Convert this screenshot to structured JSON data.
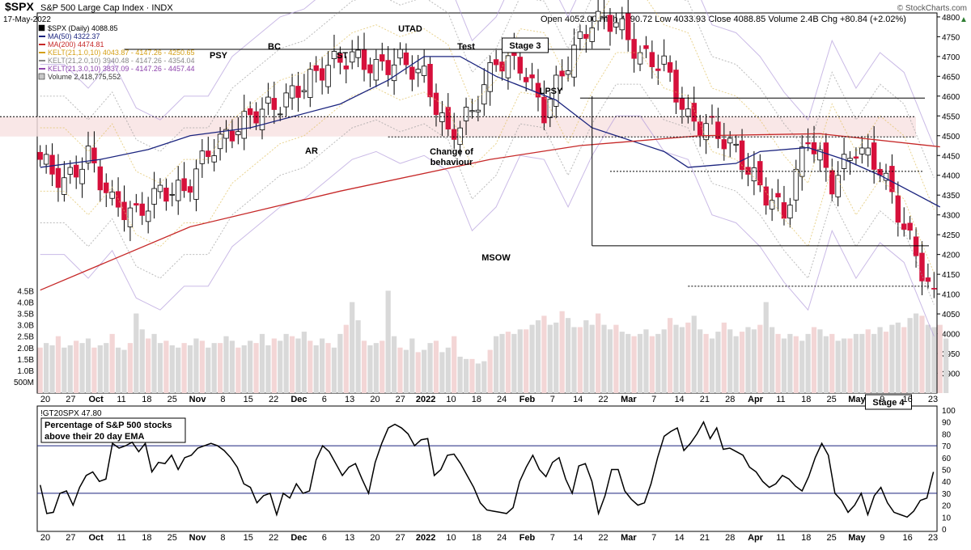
{
  "chart_data": {
    "type": "candlestick",
    "header": {
      "symbol": "$SPX",
      "name": "S&P 500 Large Cap Index",
      "exchange": "INDX",
      "date": "17-May-2022",
      "brand": "© StockCharts.com",
      "ohlc": "Open 4052.00  High 4090.72  Low 4033.93  Close 4088.85  Volume 2.4B  Chg +80.84 (+2.02%)",
      "up_arrow": "▲"
    },
    "legend": [
      {
        "label": "$SPX (Daily) 4088.85",
        "color": "#000000",
        "kind": "candle"
      },
      {
        "label": "MA(50) 4322.37",
        "color": "#1a237e",
        "kind": "line"
      },
      {
        "label": "MA(200) 4474.81",
        "color": "#c62828",
        "kind": "line"
      },
      {
        "label": "KELT(21,1.0,10) 4043.87 - 4147.26 - 4250.65",
        "color": "#d4a017",
        "kind": "line"
      },
      {
        "label": "KELT(21,2.0,10) 3940.48 - 4147.26 - 4354.04",
        "color": "#888888",
        "kind": "line"
      },
      {
        "label": "KELT(21,3.0,10) 3837.09 - 4147.26 - 4457.44",
        "color": "#8e44ad",
        "kind": "line"
      },
      {
        "label": "Volume 2,418,775,552",
        "color": "#c8c8c8",
        "kind": "box"
      }
    ],
    "price_axis": {
      "min": 3850,
      "max": 4810,
      "ticks": [
        3900,
        3950,
        4000,
        4050,
        4100,
        4150,
        4200,
        4250,
        4300,
        4350,
        4400,
        4450,
        4500,
        4550,
        4600,
        4650,
        4700,
        4750,
        4800
      ]
    },
    "volume_axis": {
      "ticks": [
        "4.5B",
        "4.0B",
        "3.5B",
        "3.0B",
        "2.5B",
        "2.0B",
        "1.5B",
        "1.0B",
        "500M"
      ]
    },
    "x_labels": [
      "20",
      "27",
      "Oct",
      "11",
      "18",
      "25",
      "Nov",
      "8",
      "15",
      "22",
      "Dec",
      "6",
      "13",
      "20",
      "27",
      "2022",
      "10",
      "18",
      "24",
      "Feb",
      "7",
      "14",
      "22",
      "Mar",
      "7",
      "14",
      "21",
      "28",
      "Apr",
      "11",
      "18",
      "25",
      "May",
      "9",
      "16",
      "23"
    ],
    "annotations": [
      "PSY",
      "BC",
      "ST",
      "UTAD",
      "Test",
      "Stage 3",
      "AR",
      "LPSY",
      "Change of behaviour",
      "MSOW",
      "Stage 4"
    ],
    "ma50_points": [
      [
        0,
        4420
      ],
      [
        10,
        4440
      ],
      [
        18,
        4465
      ],
      [
        25,
        4500
      ],
      [
        35,
        4520
      ],
      [
        50,
        4580
      ],
      [
        58,
        4640
      ],
      [
        64,
        4700
      ],
      [
        70,
        4700
      ],
      [
        76,
        4650
      ],
      [
        86,
        4590
      ],
      [
        92,
        4520
      ],
      [
        100,
        4480
      ],
      [
        104,
        4460
      ],
      [
        108,
        4420
      ],
      [
        116,
        4430
      ],
      [
        120,
        4460
      ],
      [
        128,
        4470
      ],
      [
        134,
        4440
      ],
      [
        140,
        4400
      ],
      [
        150,
        4320
      ]
    ],
    "ma200_points": [
      [
        0,
        4110
      ],
      [
        25,
        4270
      ],
      [
        50,
        4360
      ],
      [
        75,
        4440
      ],
      [
        90,
        4475
      ],
      [
        110,
        4500
      ],
      [
        130,
        4505
      ],
      [
        150,
        4472
      ]
    ],
    "volume_bars_B": [
      2.0,
      2.2,
      2.1,
      2.5,
      2.0,
      2.1,
      2.3,
      2.2,
      2.4,
      2.0,
      2.1,
      2.2,
      2.6,
      2.0,
      1.9,
      2.2,
      3.5,
      2.8,
      2.4,
      2.6,
      2.2,
      2.3,
      2.1,
      2.0,
      2.2,
      2.1,
      2.4,
      2.3,
      2.0,
      2.2,
      2.2,
      2.5,
      2.3,
      2.0,
      2.1,
      2.3,
      2.2,
      2.6,
      2.1,
      2.4,
      2.3,
      2.6,
      2.5,
      2.4,
      2.7,
      2.3,
      2.1,
      2.4,
      2.2,
      2.0,
      2.6,
      3.0,
      4.0,
      3.2,
      2.3,
      2.1,
      2.2,
      2.3,
      4.5,
      2.5,
      2.0,
      1.9,
      2.4,
      1.8,
      1.9,
      2.2,
      2.3,
      1.8,
      2.0,
      2.5,
      1.6,
      1.5,
      1.5,
      1.3,
      1.4,
      1.9,
      2.5,
      2.6,
      2.7,
      2.6,
      2.8,
      2.8,
      3.0,
      3.2,
      3.4,
      3.0,
      3.1,
      3.6,
      3.3,
      2.9,
      2.9,
      3.2,
      3.0,
      3.5,
      3.0,
      2.8,
      3.0,
      2.7,
      2.6,
      2.5,
      2.6,
      2.8,
      2.5,
      2.6,
      2.8,
      3.3,
      3.0,
      2.9,
      3.1,
      3.4,
      2.8,
      2.6,
      2.4,
      2.7,
      3.1,
      2.8,
      2.5,
      2.7,
      2.9,
      2.8,
      3.0,
      4.0,
      2.9,
      2.6,
      2.4,
      2.6,
      2.5,
      2.3,
      2.6,
      2.9,
      2.8,
      2.5,
      2.6,
      2.3,
      2.4,
      2.4,
      2.6,
      2.6,
      2.8,
      2.6,
      2.9,
      2.7,
      3.0,
      3.1,
      2.9,
      3.3,
      3.5,
      3.4,
      3.0,
      2.9,
      3.0,
      2.4
    ]
  },
  "indicator": {
    "label": "!GT20SPX 47.80",
    "title_line1": "Percentage of S&P 500 stocks",
    "title_line2": "above their 20 day EMA",
    "ticks": [
      0,
      10,
      20,
      30,
      40,
      50,
      60,
      70,
      80,
      90,
      100
    ],
    "levels": [
      30,
      70
    ],
    "values": [
      37,
      13,
      14,
      30,
      32,
      20,
      35,
      45,
      48,
      40,
      42,
      72,
      68,
      70,
      73,
      65,
      72,
      48,
      56,
      55,
      62,
      50,
      60,
      62,
      68,
      70,
      72,
      70,
      66,
      60,
      52,
      38,
      35,
      22,
      28,
      30,
      12,
      30,
      26,
      38,
      30,
      32,
      58,
      70,
      65,
      55,
      45,
      52,
      55,
      42,
      30,
      56,
      72,
      85,
      88,
      85,
      80,
      70,
      75,
      76,
      45,
      50,
      62,
      63,
      55,
      45,
      35,
      22,
      16,
      15,
      14,
      13,
      18,
      40,
      52,
      62,
      50,
      44,
      56,
      60,
      42,
      30,
      53,
      55,
      40,
      13,
      28,
      50,
      50,
      32,
      25,
      20,
      22,
      38,
      60,
      78,
      82,
      85,
      66,
      72,
      80,
      90,
      76,
      85,
      67,
      68,
      65,
      62,
      52,
      48,
      40,
      35,
      38,
      45,
      42,
      36,
      32,
      44,
      60,
      72,
      62,
      30,
      24,
      14,
      20,
      30,
      12,
      28,
      35,
      22,
      14,
      12,
      10,
      15,
      24,
      26,
      48
    ]
  }
}
